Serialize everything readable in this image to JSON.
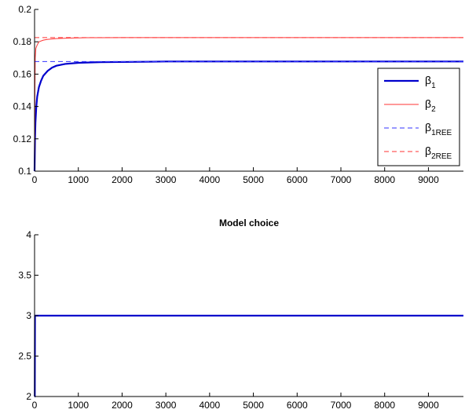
{
  "chart_data": [
    {
      "type": "line",
      "title": "",
      "xlabel": "",
      "ylabel": "",
      "xlim": [
        0,
        9800
      ],
      "ylim": [
        0.1,
        0.2
      ],
      "xticks": [
        0,
        1000,
        2000,
        3000,
        4000,
        5000,
        6000,
        7000,
        8000,
        9000
      ],
      "yticks": [
        0.1,
        0.12,
        0.14,
        0.16,
        0.18,
        0.2
      ],
      "grid": false,
      "legend_position": "right",
      "series": [
        {
          "name": "β1",
          "color": "#0000cc",
          "style": "solid-thick",
          "x": [
            0,
            10,
            20,
            40,
            60,
            100,
            150,
            200,
            300,
            400,
            500,
            700,
            1000,
            1500,
            2000,
            2700,
            3000,
            9800
          ],
          "y": [
            0.1,
            0.12,
            0.13,
            0.14,
            0.146,
            0.152,
            0.156,
            0.159,
            0.162,
            0.164,
            0.1652,
            0.1663,
            0.167,
            0.1674,
            0.1675,
            0.1677,
            0.1678,
            0.1678
          ]
        },
        {
          "name": "β2",
          "color": "#ff3333",
          "style": "solid",
          "x": [
            0,
            8,
            15,
            30,
            60,
            100,
            200,
            300,
            500,
            800,
            1200,
            2000,
            9800
          ],
          "y": [
            0.1,
            0.15,
            0.17,
            0.176,
            0.178,
            0.18,
            0.181,
            0.1815,
            0.182,
            0.1823,
            0.1825,
            0.1826,
            0.1826
          ]
        },
        {
          "name": "β1REE",
          "color": "#3333ff",
          "style": "dashed",
          "x": [
            0,
            9800
          ],
          "y": [
            0.1678,
            0.1678
          ]
        },
        {
          "name": "β2REE",
          "color": "#ff3333",
          "style": "dashed",
          "x": [
            0,
            9800
          ],
          "y": [
            0.1826,
            0.1826
          ]
        }
      ],
      "legend": [
        {
          "base": "β",
          "sub": "1"
        },
        {
          "base": "β",
          "sub": "2"
        },
        {
          "base": "β",
          "sub": "1REE"
        },
        {
          "base": "β",
          "sub": "2REE"
        }
      ]
    },
    {
      "type": "line",
      "title": "Model choice",
      "xlabel": "",
      "ylabel": "",
      "xlim": [
        0,
        9800
      ],
      "ylim": [
        2,
        4
      ],
      "xticks": [
        0,
        1000,
        2000,
        3000,
        4000,
        5000,
        6000,
        7000,
        8000,
        9000
      ],
      "yticks": [
        2,
        2.5,
        3,
        3.5,
        4
      ],
      "grid": false,
      "series": [
        {
          "color": "#0000cc",
          "style": "solid-thick",
          "x": [
            0,
            5,
            10,
            9800
          ],
          "y": [
            2,
            2,
            3,
            3
          ]
        }
      ]
    }
  ]
}
